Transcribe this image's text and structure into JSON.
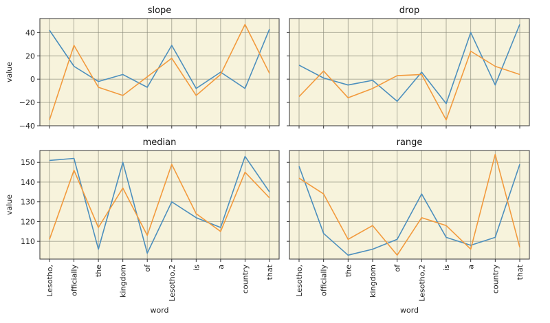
{
  "chart_data": [
    {
      "type": "line",
      "title": "slope",
      "xlabel": "",
      "ylabel": "value",
      "categories": [
        "Lesotho,",
        "officially",
        "the",
        "kingdom",
        "of",
        "Lesotho,2",
        "is",
        "a",
        "country",
        "that"
      ],
      "ylim": [
        -40,
        52
      ],
      "yticks": [
        -40,
        -20,
        0,
        20,
        40
      ],
      "grid": true,
      "series": [
        {
          "color": "#4c8fbd",
          "values": [
            42,
            11,
            -2,
            4,
            -7,
            29,
            -8,
            6,
            -8,
            43
          ]
        },
        {
          "color": "#f29a3d",
          "values": [
            -35,
            29,
            -7,
            -14,
            2,
            18,
            -14,
            4,
            47,
            5
          ]
        }
      ]
    },
    {
      "type": "line",
      "title": "drop",
      "xlabel": "",
      "ylabel": "",
      "categories": [
        "Lesotho,",
        "officially",
        "the",
        "kingdom",
        "of",
        "Lesotho,2",
        "is",
        "a",
        "country",
        "that"
      ],
      "ylim": [
        -40,
        52
      ],
      "yticks": [
        -40,
        -20,
        0,
        20,
        40
      ],
      "grid": true,
      "series": [
        {
          "color": "#4c8fbd",
          "values": [
            12,
            1,
            -5,
            -1,
            -19,
            6,
            -21,
            40,
            -5,
            47
          ]
        },
        {
          "color": "#f29a3d",
          "values": [
            -15,
            7,
            -16,
            -8,
            3,
            4,
            -35,
            24,
            11,
            4
          ]
        }
      ]
    },
    {
      "type": "line",
      "title": "median",
      "xlabel": "word",
      "ylabel": "value",
      "categories": [
        "Lesotho,",
        "officially",
        "the",
        "kingdom",
        "of",
        "Lesotho,2",
        "is",
        "a",
        "country",
        "that"
      ],
      "ylim": [
        101,
        156
      ],
      "yticks": [
        110,
        120,
        130,
        140,
        150
      ],
      "grid": true,
      "series": [
        {
          "color": "#4c8fbd",
          "values": [
            151,
            152,
            106,
            150,
            104,
            130,
            122,
            117,
            153,
            135
          ]
        },
        {
          "color": "#f29a3d",
          "values": [
            111,
            146,
            117,
            137,
            113,
            149,
            124,
            115,
            145,
            132
          ]
        }
      ]
    },
    {
      "type": "line",
      "title": "range",
      "xlabel": "word",
      "ylabel": "",
      "categories": [
        "Lesotho,",
        "officially",
        "the",
        "kingdom",
        "of",
        "Lesotho,2",
        "is",
        "a",
        "country",
        "that"
      ],
      "ylim": [
        101,
        156
      ],
      "yticks": [
        110,
        120,
        130,
        140,
        150
      ],
      "grid": true,
      "series": [
        {
          "color": "#4c8fbd",
          "values": [
            148,
            114,
            103,
            106,
            111,
            134,
            112,
            108,
            112,
            149
          ]
        },
        {
          "color": "#f29a3d",
          "values": [
            142,
            134,
            111,
            118,
            103,
            122,
            118,
            106,
            154,
            107
          ]
        }
      ]
    }
  ]
}
